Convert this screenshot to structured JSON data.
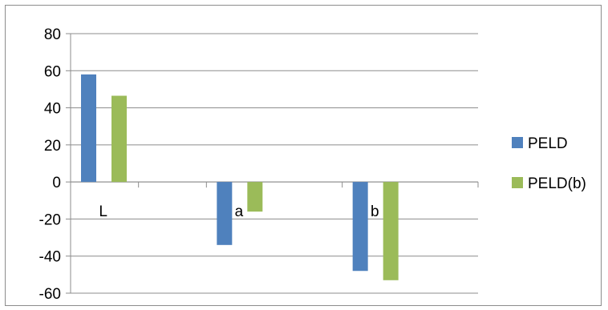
{
  "chart_data": {
    "type": "bar",
    "categories": [
      "L",
      "a",
      "b"
    ],
    "series": [
      {
        "name": "PELD",
        "values": [
          58,
          -34,
          -48
        ],
        "color": "#4f81bd"
      },
      {
        "name": "PELD(b)",
        "values": [
          46.5,
          -16,
          -53
        ],
        "color": "#9bbb59"
      }
    ],
    "ylim": [
      -60,
      80
    ],
    "yticks": [
      80,
      60,
      40,
      20,
      0,
      -20,
      -40,
      -60
    ],
    "grid": true,
    "legend": "right"
  }
}
